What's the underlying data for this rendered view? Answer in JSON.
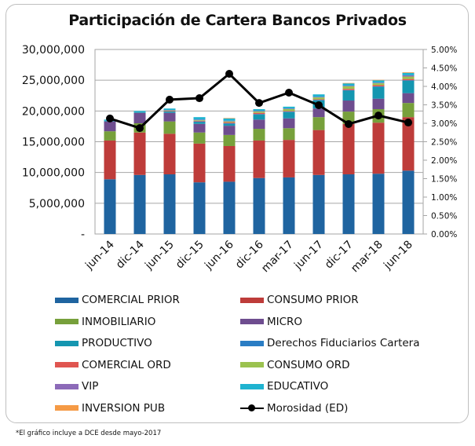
{
  "chart_data": {
    "type": "bar",
    "stacked": true,
    "title": "Participación de Cartera Bancos Privados",
    "xlabel": "",
    "ylabel": "",
    "y2label": "",
    "categories": [
      "jun-14",
      "dic-14",
      "jun-15",
      "dic-15",
      "jun-16",
      "dic-16",
      "mar-17",
      "jun-17",
      "dic-17",
      "mar-18",
      "jun-18"
    ],
    "ylim": [
      0,
      30000000
    ],
    "yticks": [
      0,
      5000000,
      10000000,
      15000000,
      20000000,
      25000000,
      30000000
    ],
    "ytick_labels": [
      "-",
      "5,000,000",
      "10,000,000",
      "15,000,000",
      "20,000,000",
      "25,000,000",
      "30,000,000"
    ],
    "y2lim": [
      0,
      5.0
    ],
    "y2ticks": [
      0,
      0.5,
      1.0,
      1.5,
      2.0,
      2.5,
      3.0,
      3.5,
      4.0,
      4.5,
      5.0
    ],
    "y2tick_labels": [
      "0.00%",
      "0.50%",
      "1.00%",
      "1.50%",
      "2.00%",
      "2.50%",
      "3.00%",
      "3.50%",
      "4.00%",
      "4.50%",
      "5.00%"
    ],
    "grid": true,
    "legend_position": "bottom",
    "series": [
      {
        "name": "COMERCIAL PRIOR",
        "color": "#1f64a0",
        "values": [
          8900000,
          9600000,
          9700000,
          8400000,
          8500000,
          9100000,
          9200000,
          9600000,
          9700000,
          9800000,
          10300000
        ]
      },
      {
        "name": "CONSUMO PRIOR",
        "color": "#be3c3a",
        "values": [
          6300000,
          6900000,
          6600000,
          6300000,
          5800000,
          6100000,
          6100000,
          7300000,
          8200000,
          8300000,
          8700000
        ]
      },
      {
        "name": "INMOBILIARIO",
        "color": "#77a03b",
        "values": [
          1500000,
          1500000,
          2000000,
          1800000,
          1800000,
          1900000,
          1900000,
          2100000,
          2000000,
          2200000,
          2300000
        ]
      },
      {
        "name": "MICRO",
        "color": "#6e4d8f",
        "values": [
          1600000,
          1700000,
          1400000,
          1400000,
          1500000,
          1500000,
          1600000,
          1400000,
          1800000,
          1700000,
          1600000
        ]
      },
      {
        "name": "PRODUCTIVO",
        "color": "#1596b0",
        "values": [
          100000,
          100000,
          200000,
          300000,
          300000,
          800000,
          1000000,
          1300000,
          1600000,
          1900000,
          2000000
        ]
      },
      {
        "name": "Derechos Fiduciarios Cartera",
        "color": "#2a7dc4",
        "values": [
          0,
          0,
          50000,
          100000,
          100000,
          100000,
          100000,
          100000,
          100000,
          100000,
          100000
        ]
      },
      {
        "name": "COMERCIAL ORD",
        "color": "#e05550",
        "values": [
          0,
          0,
          50000,
          100000,
          150000,
          200000,
          100000,
          100000,
          200000,
          200000,
          200000
        ]
      },
      {
        "name": "CONSUMO ORD",
        "color": "#9bc24f",
        "values": [
          0,
          0,
          100000,
          100000,
          150000,
          200000,
          300000,
          300000,
          400000,
          300000,
          400000
        ]
      },
      {
        "name": "VIP",
        "color": "#8c6ab8",
        "values": [
          0,
          0,
          50000,
          100000,
          100000,
          100000,
          100000,
          100000,
          100000,
          100000,
          200000
        ]
      },
      {
        "name": "EDUCATIVO",
        "color": "#1fb3d0",
        "values": [
          200000,
          200000,
          250000,
          400000,
          400000,
          300000,
          300000,
          400000,
          400000,
          400000,
          400000
        ]
      },
      {
        "name": "INVERSION PUB",
        "color": "#f59a45",
        "values": [
          0,
          0,
          0,
          0,
          50000,
          0,
          0,
          0,
          50000,
          50000,
          100000
        ]
      }
    ],
    "line_series": {
      "name": "Morosidad (ED)",
      "axis": "right",
      "unit": "%",
      "color": "#000000",
      "values": [
        3.13,
        2.87,
        3.64,
        3.68,
        4.34,
        3.55,
        3.83,
        3.49,
        2.98,
        3.21,
        3.02
      ]
    }
  },
  "legend": [
    {
      "label": "COMERCIAL PRIOR",
      "type": "bar"
    },
    {
      "label": "CONSUMO PRIOR",
      "type": "bar"
    },
    {
      "label": "INMOBILIARIO",
      "type": "bar"
    },
    {
      "label": "MICRO",
      "type": "bar"
    },
    {
      "label": "PRODUCTIVO",
      "type": "bar"
    },
    {
      "label": "Derechos Fiduciarios Cartera",
      "type": "bar"
    },
    {
      "label": "COMERCIAL ORD",
      "type": "bar"
    },
    {
      "label": "CONSUMO ORD",
      "type": "bar"
    },
    {
      "label": "VIP",
      "type": "bar"
    },
    {
      "label": "EDUCATIVO",
      "type": "bar"
    },
    {
      "label": "INVERSION PUB",
      "type": "bar"
    },
    {
      "label": "Morosidad (ED)",
      "type": "line"
    }
  ],
  "footnote": "*El gráfico incluye a DCE desde  mayo-2017"
}
